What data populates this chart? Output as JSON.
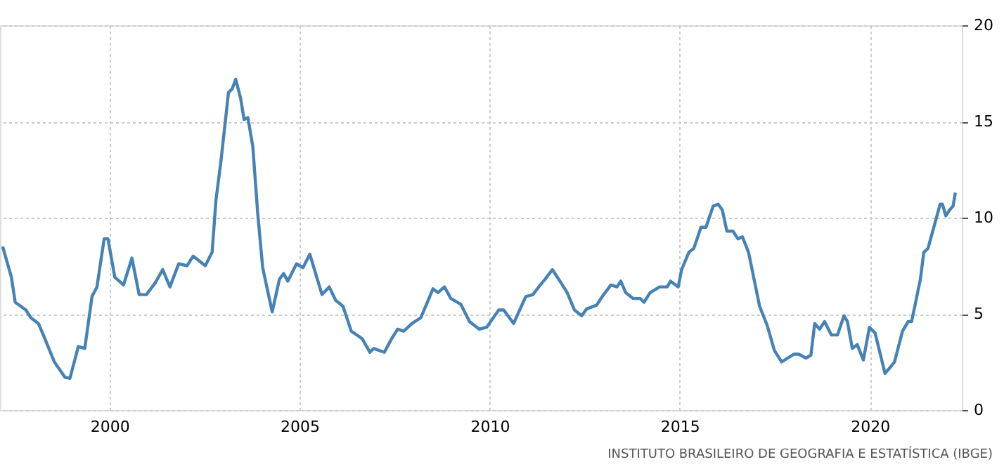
{
  "chart_data": {
    "type": "line",
    "x": [
      1997.19,
      1997.42,
      1997.52,
      1997.8,
      1997.93,
      1998.13,
      1998.26,
      1998.55,
      1998.83,
      1998.96,
      1999.18,
      1999.35,
      1999.54,
      1999.67,
      1999.86,
      1999.96,
      2000.14,
      2000.37,
      2000.59,
      2000.78,
      2000.97,
      2001.2,
      2001.4,
      2001.59,
      2001.82,
      2002.04,
      2002.2,
      2002.52,
      2002.7,
      2002.8,
      2002.93,
      2003.13,
      2003.23,
      2003.32,
      2003.45,
      2003.54,
      2003.64,
      2003.77,
      2003.9,
      2004.03,
      2004.28,
      2004.47,
      2004.58,
      2004.69,
      2004.92,
      2005.09,
      2005.27,
      2005.59,
      2005.78,
      2005.95,
      2006.14,
      2006.36,
      2006.65,
      2006.85,
      2006.95,
      2007.23,
      2007.42,
      2007.58,
      2007.74,
      2007.96,
      2008.19,
      2008.51,
      2008.64,
      2008.81,
      2008.98,
      2009.24,
      2009.47,
      2009.73,
      2009.92,
      2010.24,
      2010.37,
      2010.63,
      2010.95,
      2011.14,
      2011.33,
      2011.46,
      2011.65,
      2011.85,
      2012.04,
      2012.23,
      2012.42,
      2012.55,
      2012.81,
      2013.0,
      2013.19,
      2013.35,
      2013.45,
      2013.58,
      2013.77,
      2013.96,
      2014.06,
      2014.22,
      2014.47,
      2014.67,
      2014.76,
      2014.96,
      2015.05,
      2015.24,
      2015.37,
      2015.56,
      2015.69,
      2015.88,
      2016.01,
      2016.12,
      2016.24,
      2016.4,
      2016.53,
      2016.65,
      2016.81,
      2017.1,
      2017.3,
      2017.49,
      2017.68,
      2018.0,
      2018.13,
      2018.32,
      2018.45,
      2018.55,
      2018.68,
      2018.81,
      2018.99,
      2019.15,
      2019.32,
      2019.41,
      2019.54,
      2019.67,
      2019.83,
      2019.99,
      2020.14,
      2020.4,
      2020.57,
      2020.65,
      2020.86,
      2021.01,
      2021.1,
      2021.33,
      2021.42,
      2021.53,
      2021.85,
      2021.91,
      2022.0,
      2022.1,
      2022.19,
      2022.25
    ],
    "series": [
      {
        "color": "#4682b4",
        "values": [
          8.5,
          6.9,
          5.6,
          5.2,
          4.8,
          4.5,
          3.9,
          2.5,
          1.7,
          1.65,
          3.3,
          3.2,
          5.9,
          6.4,
          8.9,
          8.9,
          6.9,
          6.5,
          7.9,
          6.0,
          6.0,
          6.6,
          7.3,
          6.4,
          7.6,
          7.5,
          8.0,
          7.5,
          8.2,
          10.9,
          12.9,
          16.5,
          16.7,
          17.2,
          16.2,
          15.1,
          15.2,
          13.7,
          10.2,
          7.4,
          5.1,
          6.8,
          7.1,
          6.7,
          7.6,
          7.4,
          8.1,
          6.0,
          6.4,
          5.7,
          5.4,
          4.1,
          3.7,
          3.0,
          3.2,
          3.0,
          3.7,
          4.2,
          4.1,
          4.5,
          4.8,
          6.3,
          6.1,
          6.4,
          5.8,
          5.5,
          4.6,
          4.2,
          4.3,
          5.2,
          5.2,
          4.5,
          5.9,
          6.0,
          6.5,
          6.8,
          7.3,
          6.7,
          6.1,
          5.2,
          4.9,
          5.25,
          5.45,
          6.0,
          6.5,
          6.4,
          6.7,
          6.1,
          5.8,
          5.8,
          5.6,
          6.1,
          6.4,
          6.4,
          6.7,
          6.4,
          7.3,
          8.2,
          8.4,
          9.5,
          9.5,
          10.6,
          10.7,
          10.4,
          9.3,
          9.3,
          8.9,
          9.0,
          8.2,
          5.4,
          4.4,
          3.1,
          2.5,
          2.9,
          2.9,
          2.7,
          2.85,
          4.5,
          4.2,
          4.6,
          3.9,
          3.9,
          4.9,
          4.6,
          3.2,
          3.4,
          2.6,
          4.3,
          4.0,
          1.9,
          2.3,
          2.5,
          4.1,
          4.6,
          4.6,
          6.8,
          8.2,
          8.4,
          10.7,
          10.7,
          10.1,
          10.4,
          10.6,
          11.3
        ]
      }
    ],
    "xlim": [
      1997.12,
      2022.42
    ],
    "xticks": [
      2000,
      2005,
      2010,
      2015,
      2020
    ],
    "ylim": [
      0,
      20
    ],
    "yticks": [
      0,
      5,
      10,
      15,
      20
    ],
    "grid": true,
    "line_style": "solid",
    "marker": "none",
    "legend": false,
    "annotations": [
      "INSTITUTO BRASILEIRO DE GEOGRAFIA E ESTATÍSTICA (IBGE)"
    ]
  }
}
